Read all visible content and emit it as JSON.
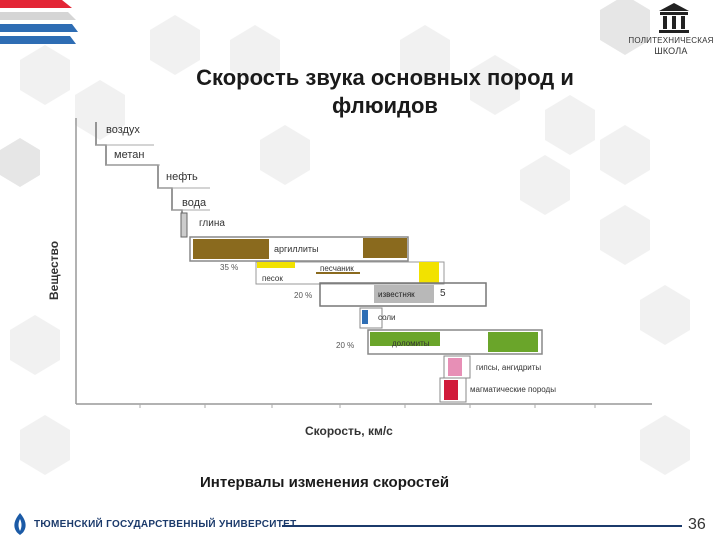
{
  "slide": {
    "title_line1": "Скорость звука основных пород и",
    "title_line2": "флюидов",
    "subtitle": "Интервалы изменения скоростей",
    "page_number": "36"
  },
  "header": {
    "logo_line1": "ПОЛИТЕХНИЧЕСКАЯ",
    "logo_line2": "ШКОЛА"
  },
  "footer": {
    "university": "ТЮМЕНСКИЙ ГОСУДАРСТВЕННЫЙ УНИВЕРСИТЕТ"
  },
  "figure": {
    "ylabel": "Вещество",
    "xlabel": "Скорость, км/с",
    "labels": {
      "air": "воздух",
      "methane": "метан",
      "oil": "нефть",
      "water": "вода",
      "clay": "глина",
      "argillite": "аргиллиты",
      "sand": "песок",
      "sandstone": "песчаник",
      "limestone": "известняк",
      "salt": "соли",
      "dolomite": "доломиты",
      "gypsum": "гипсы, ангидриты",
      "magmatic": "магматические породы",
      "pct_35": "35 %",
      "pct_20a": "20 %",
      "pct_20b": "20 %",
      "pct_5": "5"
    },
    "colors": {
      "brown": "#8a6a1e",
      "yellow": "#f2e200",
      "gray": "#b8b8b8",
      "blue": "#2f6fb5",
      "green": "#6aa52a",
      "pink": "#e78fb6",
      "red": "#d11a3a"
    }
  }
}
